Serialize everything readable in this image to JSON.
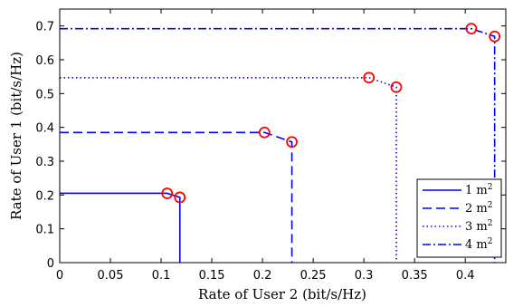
{
  "chart_data": {
    "type": "line",
    "title": "",
    "xlabel": "Rate of User 2 (bit/s/Hz)",
    "ylabel": "Rate of User 1 (bit/s/Hz)",
    "xlim": [
      0,
      0.44
    ],
    "ylim": [
      0,
      0.75
    ],
    "xticks": [
      0,
      0.05,
      0.1,
      0.15,
      0.2,
      0.25,
      0.3,
      0.35,
      0.4
    ],
    "xtick_labels": [
      "0",
      "0.05",
      "0.1",
      "0.15",
      "0.2",
      "0.25",
      "0.3",
      "0.35",
      "0.4"
    ],
    "yticks": [
      0,
      0.1,
      0.2,
      0.3,
      0.4,
      0.5,
      0.6,
      0.7
    ],
    "ytick_labels": [
      "0",
      "0.1",
      "0.2",
      "0.3",
      "0.4",
      "0.5",
      "0.6",
      "0.7"
    ],
    "grid": false,
    "legend_position": "bottom-right",
    "line_color": "#0000ff",
    "marker_color": "#ff0000",
    "series": [
      {
        "name": "1 m",
        "name_sup": "2",
        "dash": "solid",
        "x": [
          0,
          0.106,
          0.1185,
          0.1185
        ],
        "y": [
          0.205,
          0.205,
          0.193,
          0
        ],
        "markers": [
          {
            "x": 0.106,
            "y": 0.205
          },
          {
            "x": 0.1185,
            "y": 0.193
          }
        ]
      },
      {
        "name": "2 m",
        "name_sup": "2",
        "dash": "dashed",
        "x": [
          0,
          0.202,
          0.229,
          0.229
        ],
        "y": [
          0.385,
          0.385,
          0.357,
          0
        ],
        "markers": [
          {
            "x": 0.202,
            "y": 0.385
          },
          {
            "x": 0.229,
            "y": 0.357
          }
        ]
      },
      {
        "name": "3 m",
        "name_sup": "2",
        "dash": "dotted",
        "x": [
          0,
          0.305,
          0.332,
          0.332
        ],
        "y": [
          0.547,
          0.547,
          0.519,
          0
        ],
        "markers": [
          {
            "x": 0.305,
            "y": 0.547
          },
          {
            "x": 0.332,
            "y": 0.519
          }
        ]
      },
      {
        "name": "4 m",
        "name_sup": "2",
        "dash": "dashdot",
        "x": [
          0,
          0.406,
          0.429,
          0.429
        ],
        "y": [
          0.692,
          0.692,
          0.669,
          0
        ],
        "markers": [
          {
            "x": 0.406,
            "y": 0.692
          },
          {
            "x": 0.429,
            "y": 0.669
          }
        ]
      }
    ]
  }
}
